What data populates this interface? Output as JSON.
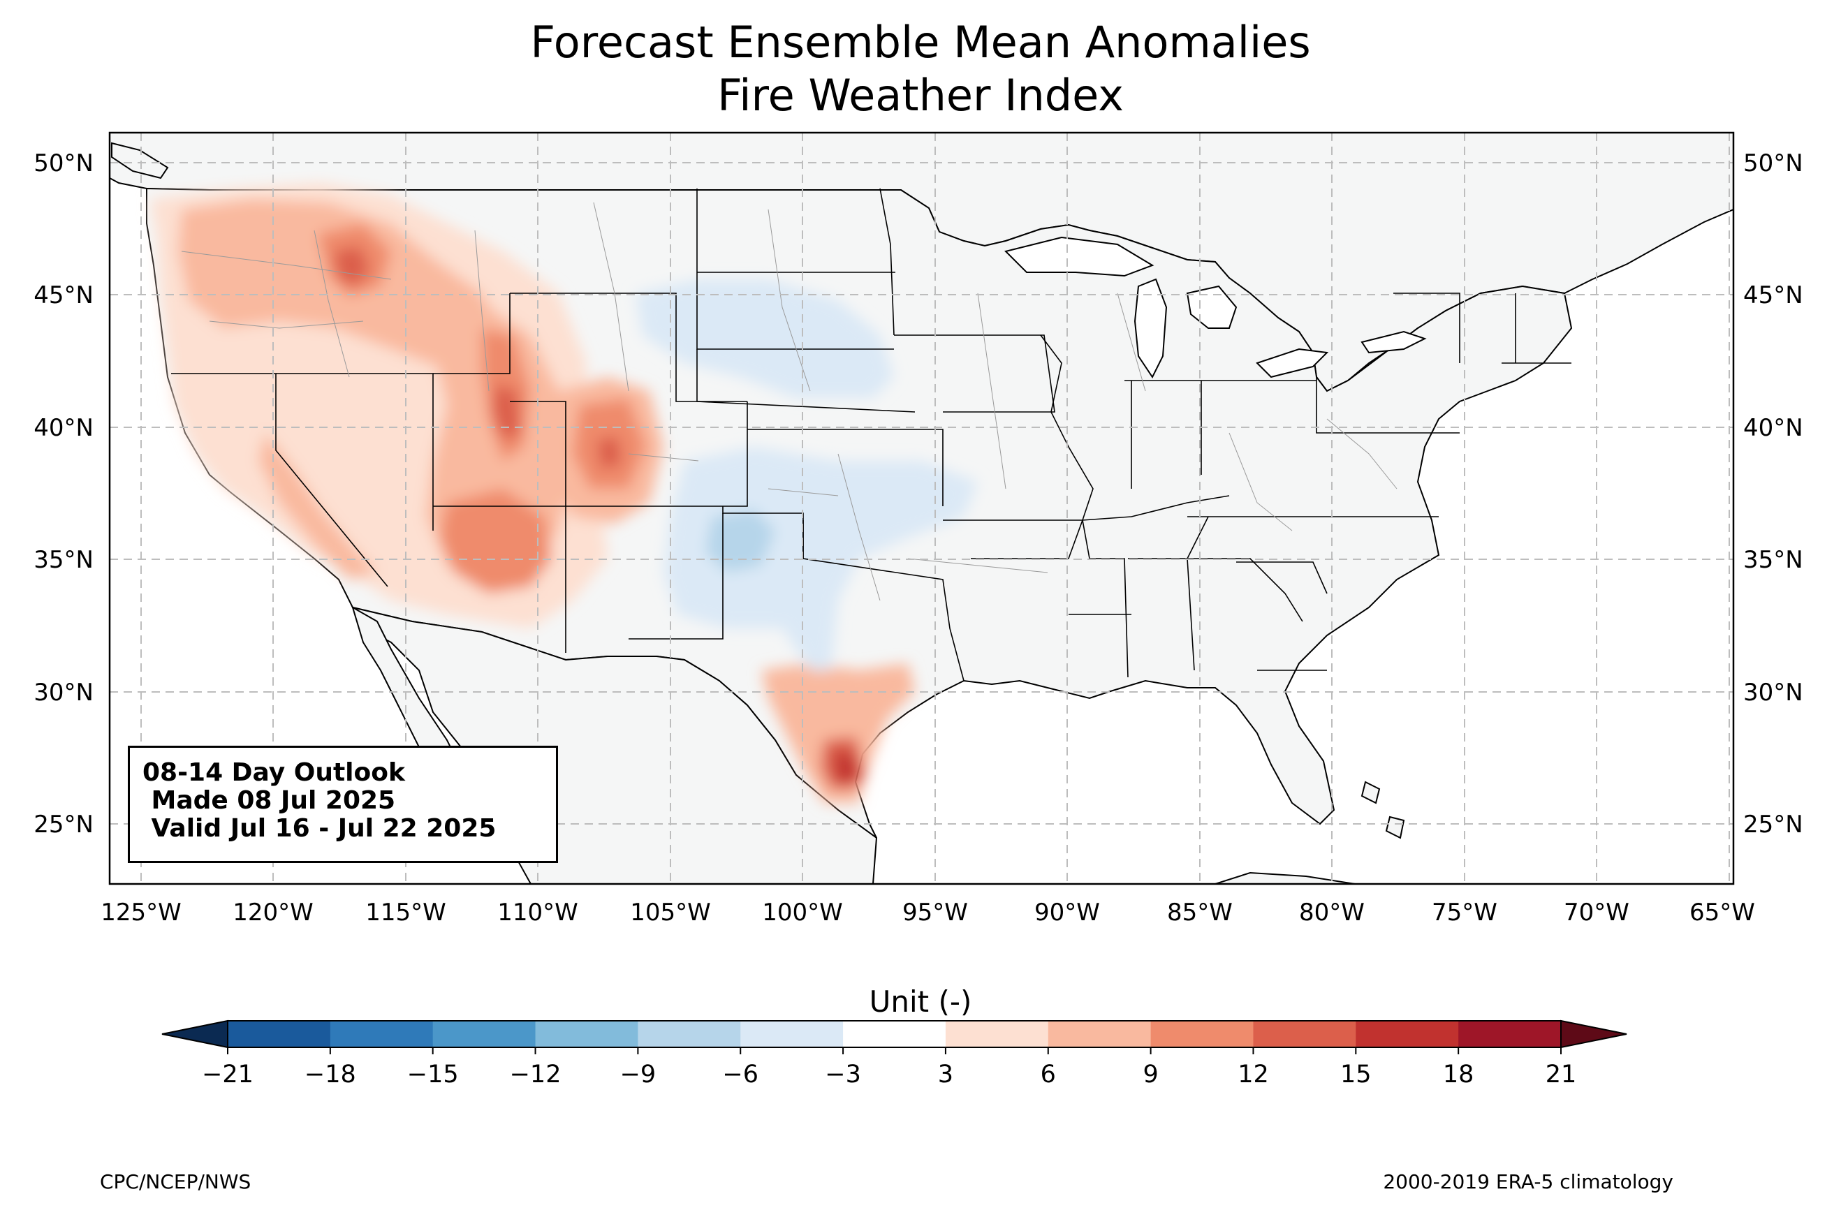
{
  "title": {
    "line1": "Forecast Ensemble Mean Anomalies",
    "line2": "Fire Weather Index"
  },
  "info_box": {
    "line1": "08-14 Day Outlook",
    "line2": " Made 08 Jul 2025",
    "line3": " Valid Jul 16 - Jul 22 2025"
  },
  "map": {
    "lon_range": [
      -126.2,
      -64.9
    ],
    "lat_range": [
      22.8,
      51.2
    ],
    "lon_ticks": [
      "125°W",
      "120°W",
      "115°W",
      "110°W",
      "105°W",
      "100°W",
      "95°W",
      "90°W",
      "85°W",
      "80°W",
      "75°W",
      "70°W",
      "65°W"
    ],
    "lat_ticks_left": [
      "50°N",
      "45°N",
      "40°N",
      "35°N",
      "30°N",
      "25°N"
    ],
    "lat_ticks_right": [
      "50°N",
      "45°N",
      "40°N",
      "35°N",
      "30°N",
      "25°N"
    ],
    "land_color": "#f5f6f6",
    "anomaly_regions": [
      {
        "name": "pacific-northwest",
        "level": 6
      },
      {
        "name": "idaho-panhandle",
        "level": 12
      },
      {
        "name": "great-basin",
        "level": 6
      },
      {
        "name": "utah-wyoming",
        "level": 12
      },
      {
        "name": "colorado",
        "level": 12
      },
      {
        "name": "arizona",
        "level": 9
      },
      {
        "name": "south-texas",
        "level": 15
      },
      {
        "name": "northern-plains",
        "level": -3
      },
      {
        "name": "southern-plains",
        "level": -6
      }
    ]
  },
  "colorbar": {
    "label": "Unit (-)",
    "ticks": [
      "−21",
      "−18",
      "−15",
      "−12",
      "−9",
      "−6",
      "−3",
      "3",
      "6",
      "9",
      "12",
      "15",
      "18",
      "21"
    ],
    "colors": [
      "#1a5a9c",
      "#2f7ab9",
      "#4b97c9",
      "#82bbdb",
      "#b6d5ea",
      "#dbe9f6",
      "#ffffff",
      "#fde0d2",
      "#f9b99f",
      "#ef8b6c",
      "#dc5f4b",
      "#c1322f",
      "#9e1628"
    ],
    "under_color": "#0b2a52",
    "over_color": "#5e0a17"
  },
  "footer": {
    "left": "CPC/NCEP/NWS",
    "right": "2000-2019 ERA-5 climatology"
  }
}
